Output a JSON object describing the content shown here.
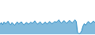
{
  "chart_data": {
    "type": "area",
    "values": [
      60000,
      72000,
      58000,
      75000,
      65000,
      70000,
      80000,
      65000,
      58000,
      72000,
      63000,
      55000,
      68000,
      75000,
      63000,
      70000,
      76000,
      64000,
      58000,
      68000,
      72000,
      62000,
      66000,
      74000,
      68000,
      72000,
      82000,
      70000,
      63000,
      68000,
      76000,
      65000,
      60000,
      70000,
      74000,
      63000,
      68000,
      78000,
      70000,
      65000,
      72000,
      78000,
      73000,
      80000,
      88000,
      75000,
      68000,
      78000,
      83000,
      73000,
      68000,
      78000,
      85000,
      75000,
      70000,
      78000,
      88000,
      78000,
      12000,
      3000,
      6000,
      20000,
      50000,
      65000,
      55000,
      68000,
      78000,
      70000,
      64000,
      75000,
      80000,
      70000
    ],
    "color": "#2b8cc4",
    "xlim": [
      0,
      71
    ],
    "ylim": [
      -5000,
      210000
    ],
    "tick_labels": false
  }
}
